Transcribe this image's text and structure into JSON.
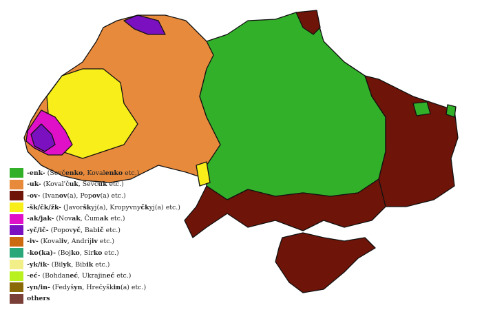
{
  "map": {
    "colors": {
      "enk": "#33b02a",
      "uk": "#e88a3c",
      "ov": "#6e1408",
      "sk": "#f7ee1a",
      "ak": "#e010c8",
      "yc": "#7a10c0",
      "iv": "#cc6a12",
      "ko": "#2aa87a",
      "yk": "#f2ef88",
      "ec": "#b8f020",
      "yn": "#8a6a08",
      "others": "#7a4038"
    }
  },
  "legend": {
    "items": [
      {
        "key": "enk",
        "color": "#33b02a",
        "parts": [
          {
            "t": "-enk-",
            "b": true
          },
          {
            "t": " (Ševč"
          },
          {
            "t": "enko",
            "b": true
          },
          {
            "t": ", Koval"
          },
          {
            "t": "enko",
            "b": true
          },
          {
            "t": " etc.)"
          }
        ]
      },
      {
        "key": "uk",
        "color": "#e88a3c",
        "parts": [
          {
            "t": "-uk-",
            "b": true
          },
          {
            "t": " (Koval'č"
          },
          {
            "t": "uk",
            "b": true
          },
          {
            "t": ", Ševč"
          },
          {
            "t": "uk",
            "b": true
          },
          {
            "t": " etc.)"
          }
        ]
      },
      {
        "key": "ov",
        "color": "#6e1408",
        "parts": [
          {
            "t": "-ov-",
            "b": true
          },
          {
            "t": " (Ivan"
          },
          {
            "t": "ov",
            "b": true
          },
          {
            "t": "(a), Pop"
          },
          {
            "t": "ov",
            "b": true
          },
          {
            "t": "(a) etc.)"
          }
        ]
      },
      {
        "key": "sk",
        "color": "#f7ee1a",
        "parts": [
          {
            "t": "-šk/čk/žk-",
            "b": true
          },
          {
            "t": " (Javor"
          },
          {
            "t": "šk",
            "b": true
          },
          {
            "t": "yj(a), Kropyvny"
          },
          {
            "t": "čk",
            "b": true
          },
          {
            "t": "yj(a) etc.)"
          }
        ]
      },
      {
        "key": "ak",
        "color": "#e010c8",
        "parts": [
          {
            "t": "-ak/jak-",
            "b": true
          },
          {
            "t": " (Nov"
          },
          {
            "t": "ak",
            "b": true
          },
          {
            "t": ", Čum"
          },
          {
            "t": "ak",
            "b": true
          },
          {
            "t": " etc.)"
          }
        ]
      },
      {
        "key": "yc",
        "color": "#7a10c0",
        "parts": [
          {
            "t": "-yč/ič-",
            "b": true
          },
          {
            "t": " (Popov"
          },
          {
            "t": "yč",
            "b": true
          },
          {
            "t": ", Bab"
          },
          {
            "t": "ič",
            "b": true
          },
          {
            "t": " etc.)"
          }
        ]
      },
      {
        "key": "iv",
        "color": "#cc6a12",
        "parts": [
          {
            "t": "-iv-",
            "b": true
          },
          {
            "t": " (Koval"
          },
          {
            "t": "iv",
            "b": true
          },
          {
            "t": ", Andrij"
          },
          {
            "t": "iv",
            "b": true
          },
          {
            "t": " etc.)"
          }
        ]
      },
      {
        "key": "ko",
        "color": "#2aa87a",
        "parts": [
          {
            "t": "-ko(ka)-",
            "b": true
          },
          {
            "t": " (Boj"
          },
          {
            "t": "ko",
            "b": true
          },
          {
            "t": ", Sir"
          },
          {
            "t": "ko",
            "b": true
          },
          {
            "t": " etc.)"
          }
        ]
      },
      {
        "key": "yk",
        "color": "#f2ef88",
        "parts": [
          {
            "t": "-yk/ik-",
            "b": true
          },
          {
            "t": " (Bil"
          },
          {
            "t": "yk",
            "b": true
          },
          {
            "t": ", Bib"
          },
          {
            "t": "ik",
            "b": true
          },
          {
            "t": " etc.)"
          }
        ]
      },
      {
        "key": "ec",
        "color": "#b8f020",
        "parts": [
          {
            "t": "-eć-",
            "b": true
          },
          {
            "t": " (Bohdan"
          },
          {
            "t": "eć",
            "b": true
          },
          {
            "t": ", Ukrajin"
          },
          {
            "t": "eć",
            "b": true
          },
          {
            "t": " etc.)"
          }
        ]
      },
      {
        "key": "yn",
        "color": "#8a6a08",
        "parts": [
          {
            "t": "-yn/in-",
            "b": true
          },
          {
            "t": " (Fedyš"
          },
          {
            "t": "yn",
            "b": true
          },
          {
            "t": ", Hrečyšk"
          },
          {
            "t": "in",
            "b": true
          },
          {
            "t": "(a) etc.)"
          }
        ]
      },
      {
        "key": "others",
        "color": "#7a4038",
        "parts": [
          {
            "t": "others",
            "b": true
          }
        ]
      }
    ]
  }
}
